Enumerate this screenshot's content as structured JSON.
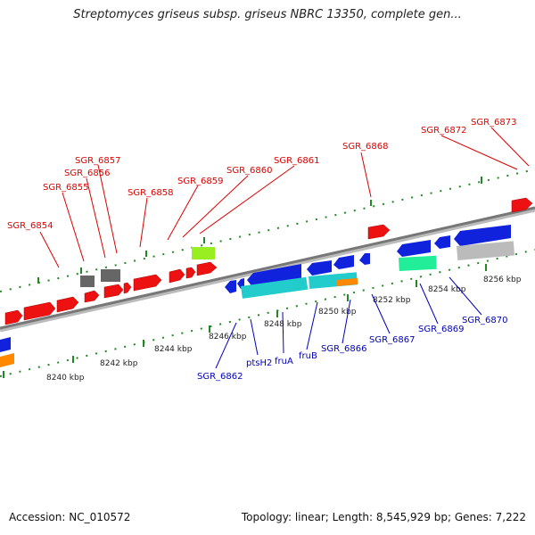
{
  "title": "Streptomyces griseus subsp. griseus NBRC 13350, complete gen...",
  "footer": {
    "accession": "Accession: NC_010572",
    "summary": "Topology: linear; Length: 8,545,929 bp; Genes: 7,222"
  },
  "colors": {
    "forward_label": "#dd0000",
    "reverse_label": "#0000bb",
    "scale_ticks": "#228822",
    "axis": "#888888"
  },
  "scale": [
    "8240 kbp",
    "8242 kbp",
    "8244 kbp",
    "8246 kbp",
    "8248 kbp",
    "8250 kbp",
    "8252 kbp",
    "8254 kbp",
    "8256 kbp"
  ],
  "forward_labels": [
    "SGR_6854",
    "SGR_6855",
    "SGR_6856",
    "SGR_6857",
    "SGR_6858",
    "SGR_6859",
    "SGR_6860",
    "SGR_6861",
    "SGR_6868",
    "SGR_6872",
    "SGR_6873"
  ],
  "reverse_labels": [
    "SGR_6862",
    "ptsH2",
    "fruA",
    "fruB",
    "SGR_6866",
    "SGR_6867",
    "SGR_6869",
    "SGR_6870"
  ]
}
